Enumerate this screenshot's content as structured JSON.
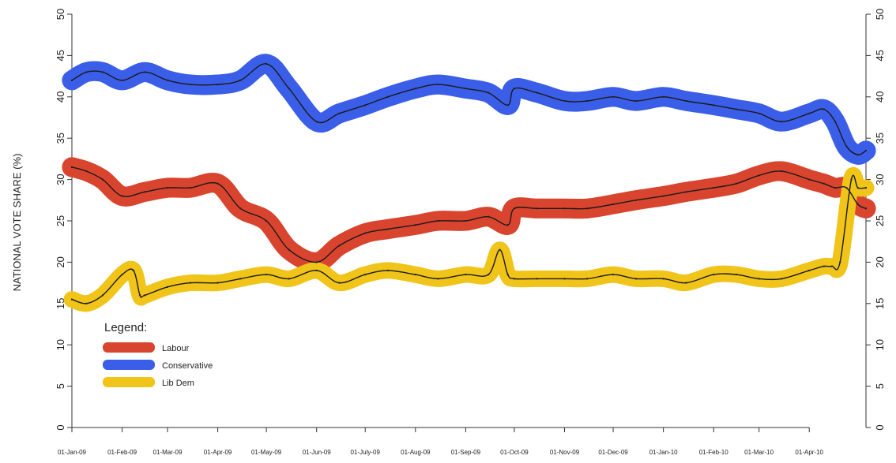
{
  "chart_data": {
    "type": "line",
    "ylabel": "NATIONAL VOTE SHARE (%)",
    "xlabel": "",
    "ylim": [
      0,
      50
    ],
    "yticks": [
      0,
      5,
      10,
      15,
      20,
      25,
      30,
      35,
      40,
      45,
      50
    ],
    "y_axis_both_sides": true,
    "grid": false,
    "x_range": [
      "2009-01-01",
      "2010-05-06"
    ],
    "x_tick_labels": [
      "01-Jan-09",
      "01-Feb-09",
      "01-Mar-09",
      "01-Apr-09",
      "01-May-09",
      "01-Jun-09",
      "01-July-09",
      "01-Aug-09",
      "01-Sep-09",
      "01-Oct-09",
      "01-Nov-09",
      "01-Dec-09",
      "01-Jan-10",
      "01-Feb-10",
      "01-Mar-10",
      "01-Apr-10"
    ],
    "x_tick_dates": [
      "2009-01-01",
      "2009-02-01",
      "2009-03-01",
      "2009-04-01",
      "2009-05-01",
      "2009-06-01",
      "2009-07-01",
      "2009-08-01",
      "2009-09-01",
      "2009-10-01",
      "2009-11-01",
      "2009-12-01",
      "2010-01-01",
      "2010-02-01",
      "2010-03-01",
      "2010-04-01"
    ],
    "legend": {
      "title": "Legend:",
      "placement": "bottom-left",
      "entries": [
        "Labour",
        "Conservative",
        "Lib Dem"
      ]
    },
    "series": [
      {
        "name": "Conservative",
        "color": "#3b5ee8",
        "x": [
          "2009-01-01",
          "2009-01-10",
          "2009-01-20",
          "2009-02-01",
          "2009-02-15",
          "2009-03-01",
          "2009-03-15",
          "2009-04-01",
          "2009-04-15",
          "2009-05-01",
          "2009-05-15",
          "2009-06-01",
          "2009-06-15",
          "2009-07-01",
          "2009-07-15",
          "2009-08-01",
          "2009-08-15",
          "2009-09-01",
          "2009-09-15",
          "2009-09-27",
          "2009-10-01",
          "2009-10-15",
          "2009-11-01",
          "2009-11-15",
          "2009-12-01",
          "2009-12-15",
          "2010-01-01",
          "2010-01-15",
          "2010-02-01",
          "2010-02-15",
          "2010-03-01",
          "2010-03-15",
          "2010-04-01",
          "2010-04-10",
          "2010-04-17",
          "2010-04-24",
          "2010-05-01",
          "2010-05-06"
        ],
        "values": [
          42,
          43,
          43,
          42,
          43,
          42,
          41.5,
          41.5,
          42,
          44,
          41,
          37,
          38,
          39,
          40,
          41,
          41.5,
          41,
          40.5,
          39,
          41,
          40.5,
          39.5,
          39.5,
          40,
          39.5,
          40,
          39.5,
          39,
          38.5,
          38,
          37,
          38,
          38.5,
          37,
          34,
          33,
          33.5
        ],
        "band_halfwidth": 1.2
      },
      {
        "name": "Labour",
        "color": "#d9442f",
        "x": [
          "2009-01-01",
          "2009-01-10",
          "2009-01-20",
          "2009-02-01",
          "2009-02-15",
          "2009-03-01",
          "2009-03-15",
          "2009-04-01",
          "2009-04-15",
          "2009-05-01",
          "2009-05-15",
          "2009-06-01",
          "2009-06-15",
          "2009-07-01",
          "2009-07-15",
          "2009-08-01",
          "2009-08-15",
          "2009-09-01",
          "2009-09-15",
          "2009-09-27",
          "2009-10-01",
          "2009-10-15",
          "2009-11-01",
          "2009-11-15",
          "2009-12-01",
          "2009-12-15",
          "2010-01-01",
          "2010-01-15",
          "2010-02-01",
          "2010-02-15",
          "2010-03-01",
          "2010-03-15",
          "2010-04-01",
          "2010-04-10",
          "2010-04-17",
          "2010-04-24",
          "2010-05-01",
          "2010-05-06"
        ],
        "values": [
          31.5,
          31,
          30,
          28,
          28.5,
          29,
          29,
          29.5,
          26.5,
          25,
          21.5,
          20,
          22,
          23.5,
          24,
          24.5,
          25,
          25,
          25.5,
          24.5,
          26.5,
          26.5,
          26.5,
          26.5,
          27,
          27.5,
          28,
          28.5,
          29,
          29.5,
          30.5,
          31,
          30,
          29.5,
          29,
          29,
          27,
          26.5
        ],
        "band_halfwidth": 1.2
      },
      {
        "name": "Lib Dem",
        "color": "#f0c419",
        "x": [
          "2009-01-01",
          "2009-01-10",
          "2009-01-20",
          "2009-02-01",
          "2009-02-08",
          "2009-02-12",
          "2009-02-15",
          "2009-03-01",
          "2009-03-15",
          "2009-04-01",
          "2009-04-15",
          "2009-05-01",
          "2009-05-15",
          "2009-06-01",
          "2009-06-15",
          "2009-07-01",
          "2009-07-15",
          "2009-08-01",
          "2009-08-15",
          "2009-09-01",
          "2009-09-15",
          "2009-09-22",
          "2009-09-27",
          "2009-10-01",
          "2009-10-15",
          "2009-11-01",
          "2009-11-15",
          "2009-12-01",
          "2009-12-15",
          "2010-01-01",
          "2010-01-15",
          "2010-02-01",
          "2010-02-15",
          "2010-03-01",
          "2010-03-15",
          "2010-04-01",
          "2010-04-10",
          "2010-04-15",
          "2010-04-20",
          "2010-04-27",
          "2010-05-01",
          "2010-05-06"
        ],
        "values": [
          15.5,
          15,
          16,
          18.5,
          19,
          16,
          16,
          17,
          17.5,
          17.5,
          18,
          18.5,
          18,
          19,
          17.5,
          18.5,
          19,
          18.5,
          18,
          18.5,
          18.5,
          21.5,
          18.5,
          18,
          18,
          18,
          18,
          18.5,
          18,
          18,
          17.5,
          18.5,
          18.5,
          18,
          18,
          19,
          19.5,
          19.5,
          20,
          30,
          29,
          29
        ],
        "band_halfwidth": 1.0
      }
    ]
  }
}
